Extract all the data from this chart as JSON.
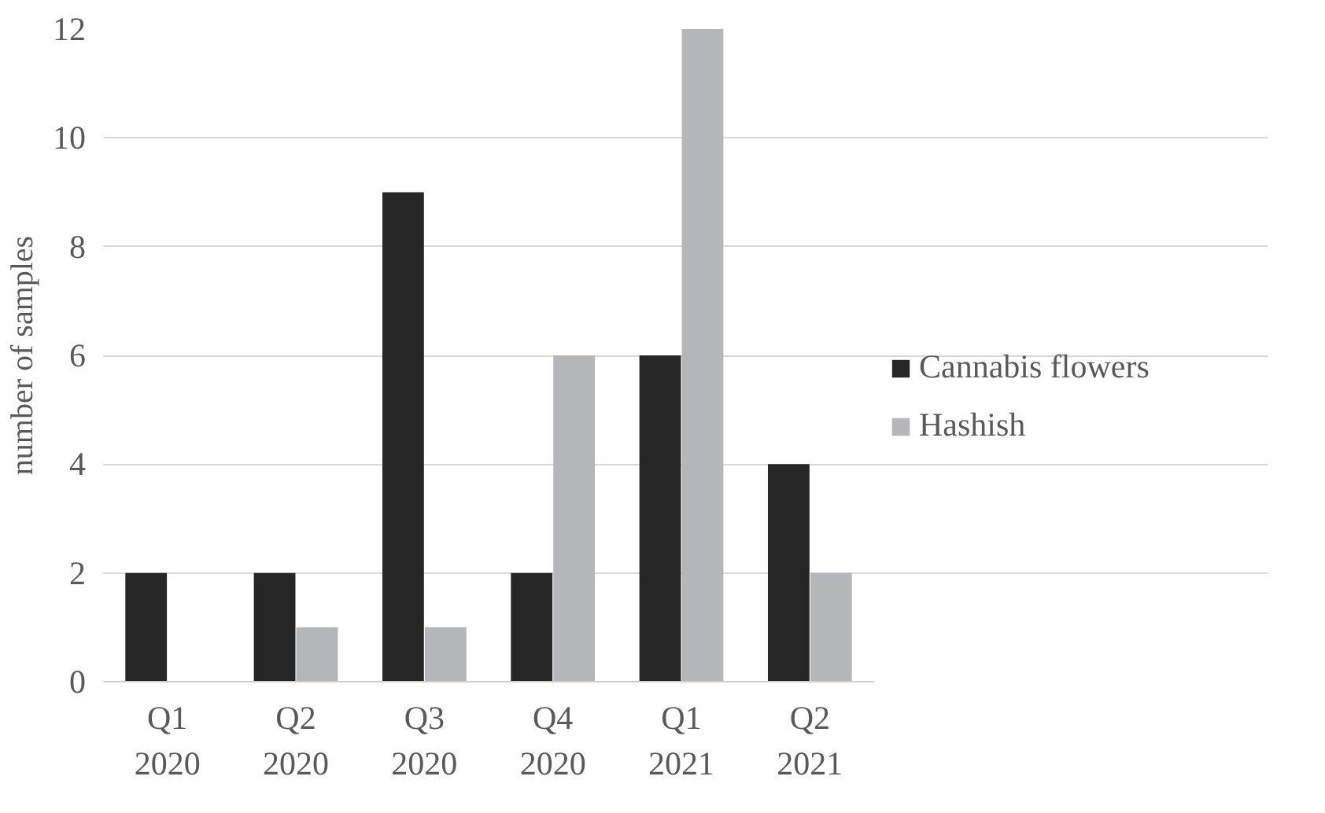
{
  "chart_data": {
    "type": "bar",
    "ylabel": "number of samples",
    "categories": [
      "Q1\n2020",
      "Q2\n2020",
      "Q3\n2020",
      "Q4\n2020",
      "Q1\n2021",
      "Q2\n2021"
    ],
    "series": [
      {
        "name": "Cannabis flowers",
        "color": "#262626",
        "values": [
          2,
          2,
          9,
          2,
          6,
          4
        ]
      },
      {
        "name": "Hashish",
        "color": "#b5b6b9",
        "values": [
          0,
          1,
          1,
          6,
          12,
          2
        ]
      }
    ],
    "ylim": [
      0,
      12
    ],
    "yticks": [
      0,
      2,
      4,
      6,
      8,
      10,
      12
    ],
    "grid": "y",
    "legend": "right"
  }
}
